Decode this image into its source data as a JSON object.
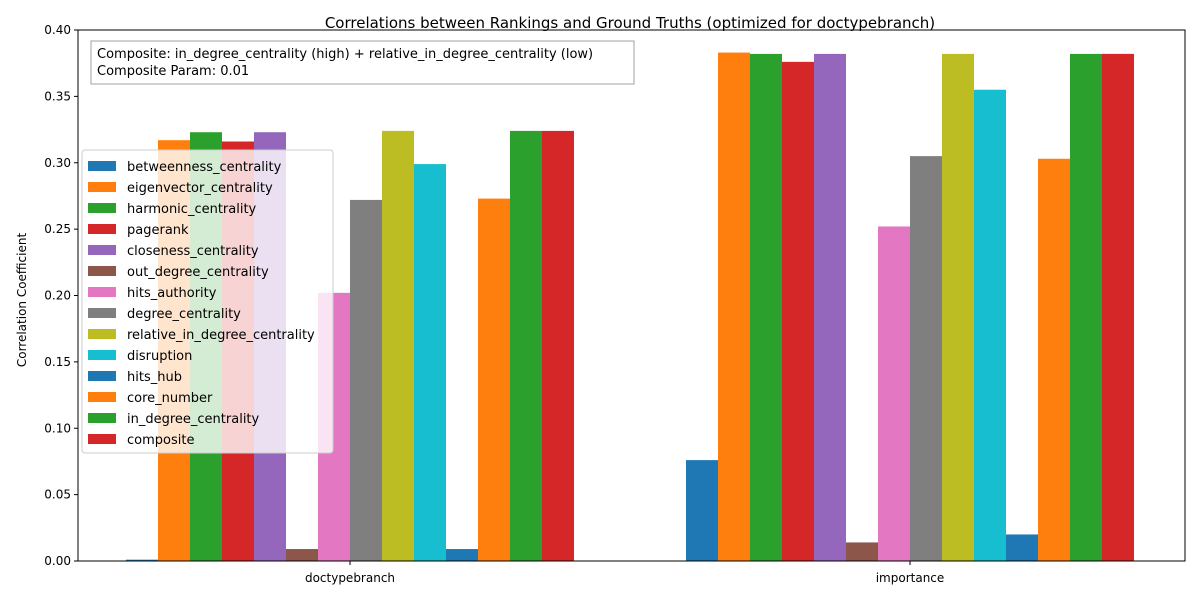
{
  "chart_data": {
    "type": "bar",
    "title": "Correlations between Rankings and Ground Truths (optimized for doctypebranch)",
    "xlabel": "",
    "ylabel": "Correlation Coefficient",
    "ylim": [
      0,
      0.4
    ],
    "yticks": [
      "0.00",
      "0.05",
      "0.10",
      "0.15",
      "0.20",
      "0.25",
      "0.30",
      "0.35",
      "0.40"
    ],
    "categories": [
      "doctypebranch",
      "importance"
    ],
    "legend_position": "center-left",
    "annotation": {
      "line1": "Composite: in_degree_centrality (high) + relative_in_degree_centrality (low)",
      "line2": "Composite Param: 0.01"
    },
    "series": [
      {
        "name": "betweenness_centrality",
        "color": "#1f77b4",
        "values": [
          0.001,
          0.076
        ]
      },
      {
        "name": "eigenvector_centrality",
        "color": "#ff7f0e",
        "values": [
          0.317,
          0.383
        ]
      },
      {
        "name": "harmonic_centrality",
        "color": "#2ca02c",
        "values": [
          0.323,
          0.382
        ]
      },
      {
        "name": "pagerank",
        "color": "#d62728",
        "values": [
          0.316,
          0.376
        ]
      },
      {
        "name": "closeness_centrality",
        "color": "#9467bd",
        "values": [
          0.323,
          0.382
        ]
      },
      {
        "name": "out_degree_centrality",
        "color": "#8c564b",
        "values": [
          0.009,
          0.014
        ]
      },
      {
        "name": "hits_authority",
        "color": "#e377c2",
        "values": [
          0.202,
          0.252
        ]
      },
      {
        "name": "degree_centrality",
        "color": "#7f7f7f",
        "values": [
          0.272,
          0.305
        ]
      },
      {
        "name": "relative_in_degree_centrality",
        "color": "#bcbd22",
        "values": [
          0.324,
          0.382
        ]
      },
      {
        "name": "disruption",
        "color": "#17becf",
        "values": [
          0.299,
          0.355
        ]
      },
      {
        "name": "hits_hub",
        "color": "#1f77b4",
        "values": [
          0.009,
          0.02
        ]
      },
      {
        "name": "core_number",
        "color": "#ff7f0e",
        "values": [
          0.273,
          0.303
        ]
      },
      {
        "name": "in_degree_centrality",
        "color": "#2ca02c",
        "values": [
          0.324,
          0.382
        ]
      },
      {
        "name": "composite",
        "color": "#d62728",
        "values": [
          0.324,
          0.382
        ]
      }
    ]
  }
}
